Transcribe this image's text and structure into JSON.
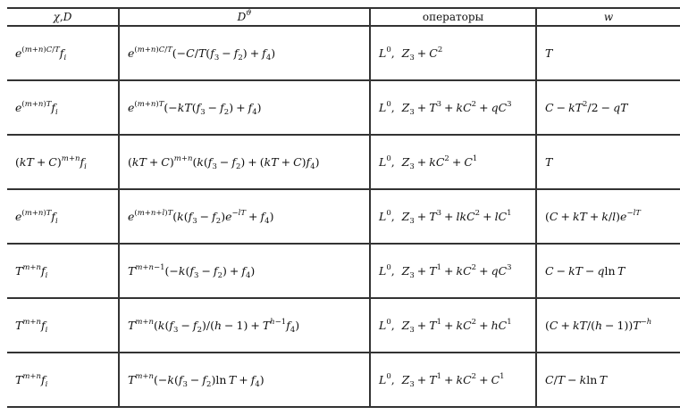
{
  "header": {
    "col1": "\\chi, D",
    "col2": "D^{\\vartheta}",
    "col3": "операторы",
    "col4": "w"
  },
  "rows": [
    {
      "chi": "e^{(m+n)C/T} f_i",
      "dtheta": "e^{(m+n)C/T}(-C/T(f_3 - f_2) + f_4)",
      "ops": "L^0,  Z_3 + C^2",
      "w": "T"
    },
    {
      "chi": "e^{(m+n)T} f_i",
      "dtheta": "e^{(m+n)T}(-kT(f_3 - f_2) + f_4)",
      "ops": "L^0,  Z_3 + T^3 + kC^2 + qC^3",
      "w": "C - kT^2/2 - qT"
    },
    {
      "chi": "(kT + C)^{m+n} f_i",
      "dtheta": "(kT + C)^{m+n}(k(f_3 - f_2) + (kT + C)f_4)",
      "ops": "L^0,  Z_3 + kC^2 + C^1",
      "w": "T"
    },
    {
      "chi": "e^{(m+n)T} f_i",
      "dtheta": "e^{(m+n+l)T}(k(f_3 - f_2)e^{-lT} + f_4)",
      "ops": "L^0,  Z_3 + T^3 + lkC^2 + lC^1",
      "w": "(C + kT + k/l)e^{-lT}"
    },
    {
      "chi": "T^{m+n} f_i",
      "dtheta": "T^{m+n-1}(-k(f_3 - f_2) + f_4)",
      "ops": "L^0,  Z_3 + T^1 + kC^2 + qC^3",
      "w": "C - kT - q \\ln T"
    },
    {
      "chi": "T^{m+n} f_i",
      "dtheta": "T^{m+n}(k(f_3 - f_2)/(h - 1) + T^{h-1} f_4)",
      "ops": "L^0,  Z_3 + T^1 + kC^2 + hC^1",
      "w": "(C + kT/(h - 1))T^{-h}"
    },
    {
      "chi": "T^{m+n} f_i",
      "dtheta": "T^{m+n}(-k(f_3 - f_2) \\ln T + f_4)",
      "ops": "L^0,  Z_3 + T^1 + kC^2 + C^1",
      "w": "C/T - k \\ln T"
    }
  ]
}
